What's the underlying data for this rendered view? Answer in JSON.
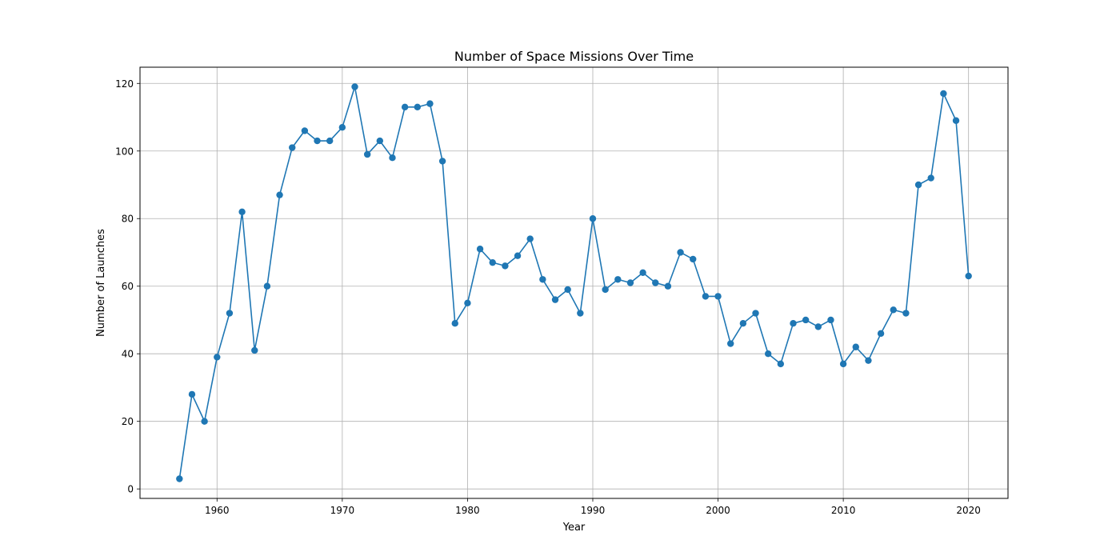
{
  "chart_data": {
    "type": "line",
    "title": "Number of Space Missions Over Time",
    "xlabel": "Year",
    "ylabel": "Number of Launches",
    "xlim": [
      1953.85,
      2023.15
    ],
    "ylim": [
      -2.8,
      124.8
    ],
    "xticks": [
      1960,
      1970,
      1980,
      1990,
      2000,
      2010,
      2020
    ],
    "yticks": [
      0,
      20,
      40,
      60,
      80,
      100,
      120
    ],
    "grid": true,
    "series": [
      {
        "color": "#1f77b4",
        "marker": "circle",
        "x": [
          1957,
          1958,
          1959,
          1960,
          1961,
          1962,
          1963,
          1964,
          1965,
          1966,
          1967,
          1968,
          1969,
          1970,
          1971,
          1972,
          1973,
          1974,
          1975,
          1976,
          1977,
          1978,
          1979,
          1980,
          1981,
          1982,
          1983,
          1984,
          1985,
          1986,
          1987,
          1988,
          1989,
          1990,
          1991,
          1992,
          1993,
          1994,
          1995,
          1996,
          1997,
          1998,
          1999,
          2000,
          2001,
          2002,
          2003,
          2004,
          2005,
          2006,
          2007,
          2008,
          2009,
          2010,
          2011,
          2012,
          2013,
          2014,
          2015,
          2016,
          2017,
          2018,
          2019,
          2020
        ],
        "values": [
          3,
          28,
          20,
          39,
          52,
          82,
          41,
          60,
          87,
          101,
          106,
          103,
          103,
          107,
          119,
          99,
          103,
          98,
          113,
          113,
          114,
          97,
          49,
          55,
          71,
          67,
          66,
          69,
          74,
          62,
          56,
          59,
          52,
          80,
          59,
          62,
          61,
          64,
          61,
          60,
          70,
          68,
          57,
          57,
          43,
          49,
          52,
          40,
          37,
          49,
          50,
          48,
          50,
          37,
          42,
          38,
          46,
          53,
          52,
          90,
          92,
          117,
          109,
          63
        ]
      }
    ]
  }
}
